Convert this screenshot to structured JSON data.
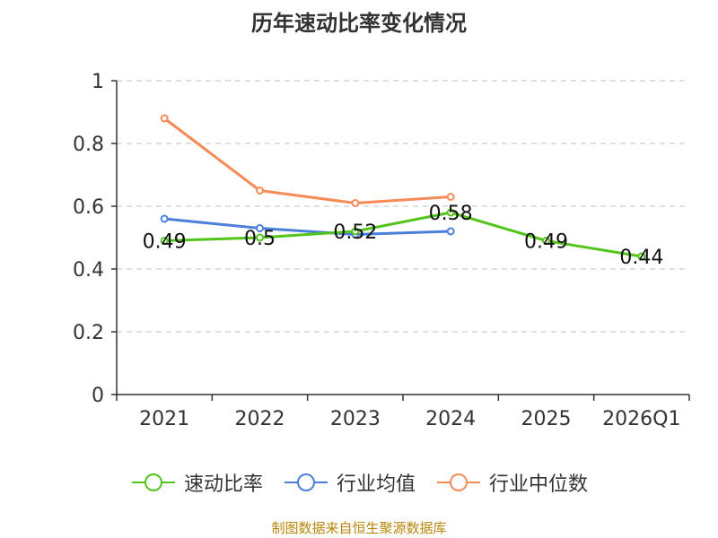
{
  "chart_data": {
    "type": "line",
    "title": "历年速动比率变化情况",
    "categories": [
      "2021",
      "2022",
      "2023",
      "2024",
      "2025",
      "2026Q1"
    ],
    "ylim": [
      0,
      1
    ],
    "yticks": [
      "0",
      "0.2",
      "0.4",
      "0.6",
      "0.8",
      "1"
    ],
    "grid": true,
    "legend_position": "bottom",
    "series": [
      {
        "name": "速动比率",
        "color": "#52c41a",
        "values": [
          0.49,
          0.5,
          0.52,
          0.58,
          0.49,
          0.44
        ],
        "labels": [
          "0.49",
          "0.5",
          "0.52",
          "0.58",
          "0.49",
          "0.44"
        ]
      },
      {
        "name": "行业均值",
        "color": "#4a7fdc",
        "values": [
          0.56,
          0.53,
          0.51,
          0.52,
          null,
          null
        ]
      },
      {
        "name": "行业中位数",
        "color": "#f68b57",
        "values": [
          0.88,
          0.65,
          0.61,
          0.63,
          null,
          null
        ]
      }
    ]
  },
  "source": "制图数据来自恒生聚源数据库"
}
